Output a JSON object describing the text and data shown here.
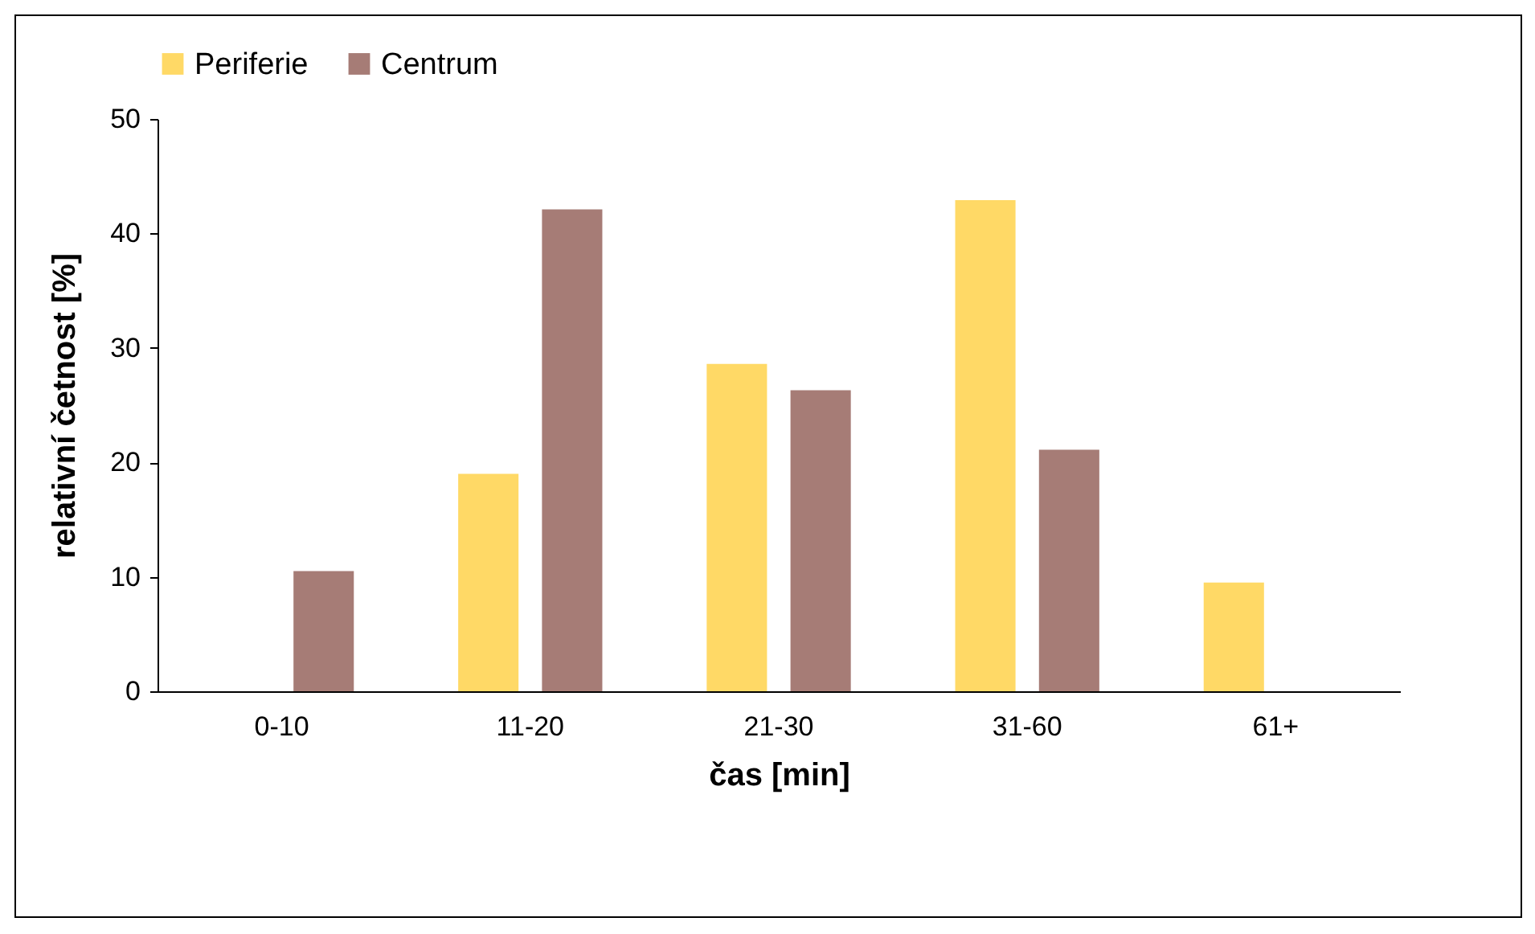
{
  "chart_data": {
    "type": "bar",
    "xlabel": "čas [min]",
    "ylabel": "relativní četnost [%]",
    "categories": [
      "0-10",
      "11-20",
      "21-30",
      "31-60",
      "61+"
    ],
    "series": [
      {
        "name": "Periferie",
        "color": "#ffd966",
        "values": [
          0,
          19.0,
          28.6,
          42.9,
          9.5
        ]
      },
      {
        "name": "Centrum",
        "color": "#a67c76",
        "values": [
          10.5,
          42.1,
          26.3,
          21.1,
          0
        ]
      }
    ],
    "ylim": [
      0,
      50
    ],
    "yticks": [
      0,
      10,
      20,
      30,
      40,
      50
    ],
    "grid": false,
    "legend": "top"
  }
}
